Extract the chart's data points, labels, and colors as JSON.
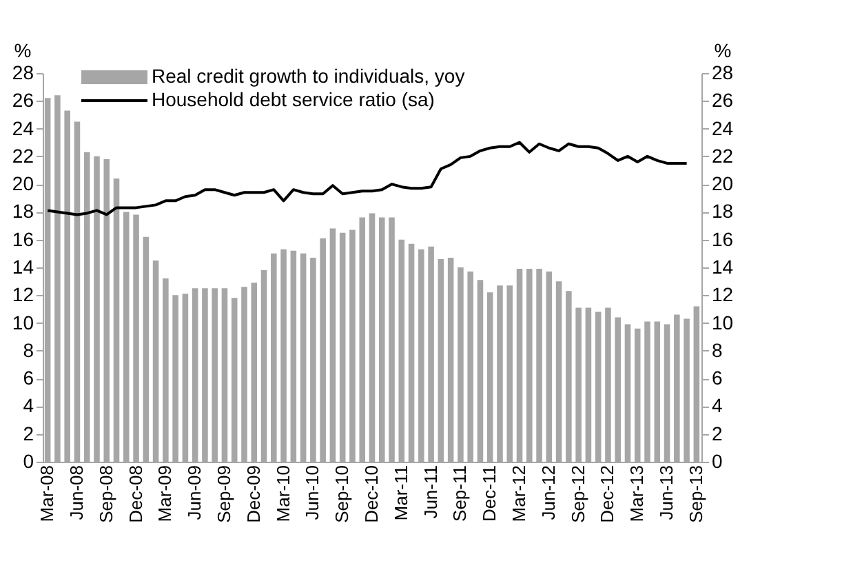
{
  "chart_data": {
    "type": "bar",
    "categories": [
      "Mar-08",
      null,
      null,
      "Jun-08",
      null,
      null,
      "Sep-08",
      null,
      null,
      "Dec-08",
      null,
      null,
      "Mar-09",
      null,
      null,
      "Jun-09",
      null,
      null,
      "Sep-09",
      null,
      null,
      "Dec-09",
      null,
      null,
      "Mar-10",
      null,
      null,
      "Jun-10",
      null,
      null,
      "Sep-10",
      null,
      null,
      "Dec-10",
      null,
      null,
      "Mar-11",
      null,
      null,
      "Jun-11",
      null,
      null,
      "Sep-11",
      null,
      null,
      "Dec-11",
      null,
      null,
      "Mar-12",
      null,
      null,
      "Jun-12",
      null,
      null,
      "Sep-12",
      null,
      null,
      "Dec-12",
      null,
      null,
      "Mar-13",
      null,
      null,
      "Jun-13",
      null,
      null,
      "Sep-13"
    ],
    "series": [
      {
        "name": "Real credit growth to individuals, yoy",
        "color": "#a6a6a6",
        "values": [
          26.2,
          26.4,
          25.3,
          24.5,
          22.3,
          22.0,
          21.8,
          20.4,
          18.0,
          17.8,
          16.2,
          14.5,
          13.2,
          12.0,
          12.1,
          12.5,
          12.5,
          12.5,
          12.5,
          11.8,
          12.6,
          12.9,
          13.8,
          15.0,
          15.3,
          15.2,
          15.0,
          14.7,
          16.1,
          16.8,
          16.5,
          16.7,
          17.6,
          17.9,
          17.6,
          17.6,
          16.0,
          15.7,
          15.3,
          15.5,
          14.6,
          14.7,
          14.0,
          13.7,
          13.1,
          12.2,
          12.7,
          12.7,
          13.9,
          13.9,
          13.9,
          13.7,
          13.0,
          12.3,
          11.1,
          11.1,
          10.8,
          11.1,
          10.4,
          9.9,
          9.6,
          10.1,
          10.1,
          9.9,
          10.6,
          10.3,
          11.2
        ]
      },
      {
        "name": "Household debt service ratio (sa)",
        "type": "line",
        "color": "#000000",
        "values": [
          18.1,
          18.0,
          17.9,
          17.8,
          17.9,
          18.1,
          17.8,
          18.3,
          18.3,
          18.3,
          18.4,
          18.5,
          18.8,
          18.8,
          19.1,
          19.2,
          19.6,
          19.6,
          19.4,
          19.2,
          19.4,
          19.4,
          19.4,
          19.6,
          18.8,
          19.6,
          19.4,
          19.3,
          19.3,
          19.9,
          19.3,
          19.4,
          19.5,
          19.5,
          19.6,
          20.0,
          19.8,
          19.7,
          19.7,
          19.8,
          21.1,
          21.4,
          21.9,
          22.0,
          22.4,
          22.6,
          22.7,
          22.7,
          23.0,
          22.3,
          22.9,
          22.6,
          22.4,
          22.9,
          22.7,
          22.7,
          22.6,
          22.2,
          21.7,
          22.0,
          21.6,
          22.0,
          21.7,
          21.5,
          21.5,
          21.5,
          null
        ]
      }
    ],
    "ylabel": "%",
    "y2label": "%",
    "ylim": [
      0,
      28
    ],
    "yticks": [
      0,
      2,
      4,
      6,
      8,
      10,
      12,
      14,
      16,
      18,
      20,
      22,
      24,
      26,
      28
    ],
    "y2lim": [
      0,
      28
    ],
    "y2ticks": [
      0,
      2,
      4,
      6,
      8,
      10,
      12,
      14,
      16,
      18,
      20,
      22,
      24,
      26,
      28
    ],
    "grid": false,
    "legend": "top left"
  }
}
